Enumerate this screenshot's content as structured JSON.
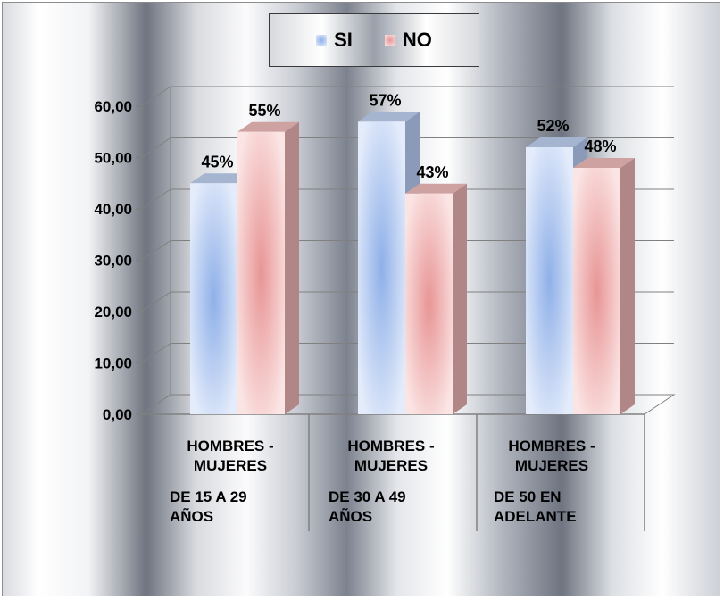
{
  "chart_data": {
    "type": "bar",
    "categories": [
      {
        "line1": "HOMBRES -",
        "line2": "MUJERES",
        "sub1": "DE 15 A 29",
        "sub2": "AÑOS"
      },
      {
        "line1": "HOMBRES -",
        "line2": "MUJERES",
        "sub1": "DE 30 A 49",
        "sub2": "AÑOS"
      },
      {
        "line1": "HOMBRES -",
        "line2": "MUJERES",
        "sub1": "DE 50 EN",
        "sub2": "ADELANTE"
      }
    ],
    "series": [
      {
        "name": "SI",
        "values": [
          45,
          57,
          52
        ],
        "labels": [
          "45%",
          "57%",
          "52%"
        ],
        "color": "#b9cdf2"
      },
      {
        "name": "NO",
        "values": [
          55,
          43,
          48
        ],
        "labels": [
          "55%",
          "43%",
          "48%"
        ],
        "color": "#f2b9b9"
      }
    ],
    "y_ticks": [
      "0,00",
      "10,00",
      "20,00",
      "30,00",
      "40,00",
      "50,00",
      "60,00"
    ],
    "ylim": [
      0,
      60
    ],
    "grid": true,
    "legend_position": "top-center",
    "style": "3d-column"
  }
}
